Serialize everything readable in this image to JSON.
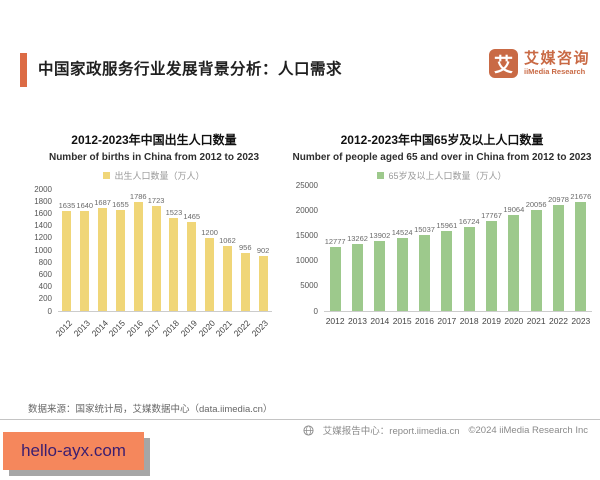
{
  "header": {
    "title": "中国家政服务行业发展背景分析：人口需求",
    "logo": {
      "glyph": "艾",
      "name_cn": "艾媒咨询",
      "name_en": "iiMedia Research"
    }
  },
  "chart_data": [
    {
      "type": "bar",
      "title": "2012-2023年中国出生人口数量",
      "subtitle": "Number of births in China from 2012 to 2023",
      "legend": "出生人口数量（万人）",
      "categories": [
        "2012",
        "2013",
        "2014",
        "2015",
        "2016",
        "2017",
        "2018",
        "2019",
        "2020",
        "2021",
        "2022",
        "2023"
      ],
      "values": [
        1635,
        1640,
        1687,
        1655,
        1786,
        1723,
        1523,
        1465,
        1200,
        1062,
        956,
        902
      ],
      "ylim": [
        0,
        2000
      ],
      "ytick_step": 200,
      "bar_color": "#F0D678",
      "x_label_rotation": -45,
      "grid": false,
      "legend_position": "top"
    },
    {
      "type": "bar",
      "title": "2012-2023年中国65岁及以上人口数量",
      "subtitle": "Number of people aged 65 and over in China from 2012 to 2023",
      "legend": "65岁及以上人口数量（万人）",
      "categories": [
        "2012",
        "2013",
        "2014",
        "2015",
        "2016",
        "2017",
        "2018",
        "2019",
        "2020",
        "2021",
        "2022",
        "2023"
      ],
      "values": [
        12777,
        13262,
        13902,
        14524,
        15037,
        15961,
        16724,
        17767,
        19064,
        20056,
        20978,
        21676
      ],
      "ylim": [
        0,
        25000
      ],
      "ytick_step": 5000,
      "bar_color": "#9DC98C",
      "x_label_rotation": 0,
      "grid": false,
      "legend_position": "top"
    }
  ],
  "source_note": "数据来源：国家统计局，艾媒数据中心（data.iimedia.cn）",
  "footer": {
    "report_center": "艾媒报告中心：report.iimedia.cn",
    "copyright": "©2024  iiMedia Research  Inc"
  },
  "watermark": "hello-ayx.com",
  "colors": {
    "accent_orange": "#DC6B45",
    "logo_orange": "#C96A45",
    "birth_bar": "#F0D678",
    "elderly_bar": "#9DC98C",
    "watermark_bg": "#F5875C",
    "watermark_text": "#3B1E70"
  }
}
